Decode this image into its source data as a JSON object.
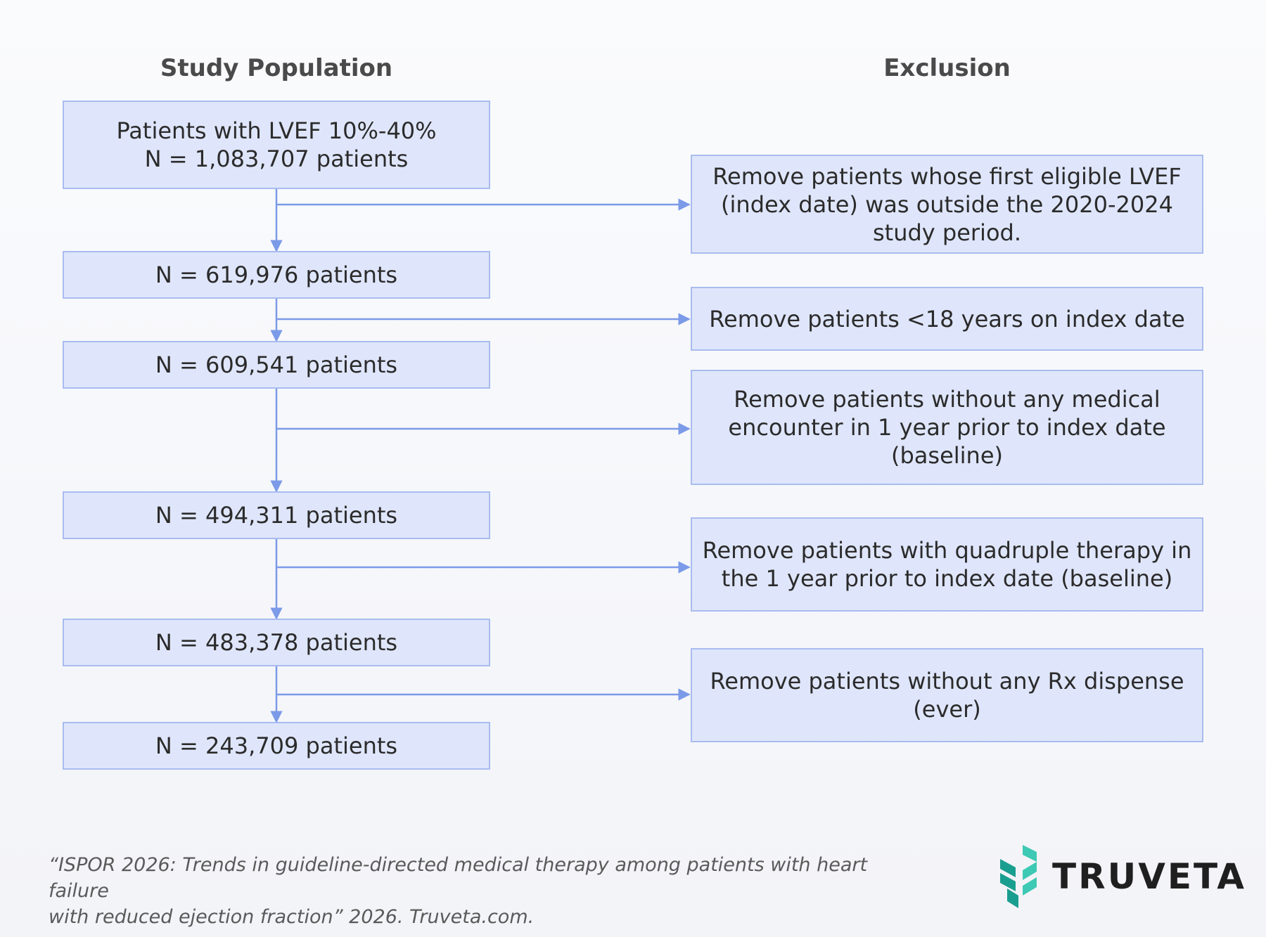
{
  "headings": {
    "population": "Study Population",
    "exclusion": "Exclusion"
  },
  "population_steps": [
    {
      "lines": [
        "Patients with LVEF 10%-40%",
        "N = 1,083,707 patients"
      ]
    },
    {
      "lines": [
        "N = 619,976 patients"
      ]
    },
    {
      "lines": [
        "N = 609,541 patients"
      ]
    },
    {
      "lines": [
        "N = 494,311 patients"
      ]
    },
    {
      "lines": [
        "N = 483,378 patients"
      ]
    },
    {
      "lines": [
        "N = 243,709 patients"
      ]
    }
  ],
  "exclusions": [
    {
      "lines": [
        "Remove patients whose first eligible LVEF",
        "(index date) was outside the 2020-2024",
        "study period."
      ]
    },
    {
      "lines": [
        "Remove patients <18 years on index date"
      ]
    },
    {
      "lines": [
        "Remove patients without any medical",
        "encounter in 1 year prior to index date",
        "(baseline)"
      ]
    },
    {
      "lines": [
        "Remove patients with quadruple therapy in",
        "the 1 year prior to index date (baseline)"
      ]
    },
    {
      "lines": [
        "Remove patients without any Rx dispense",
        "(ever)"
      ]
    }
  ],
  "citation": {
    "line1": "“ISPOR 2026: Trends in guideline-directed medical therapy among patients with heart failure",
    "line2": "with reduced ejection fraction” 2026. Truveta.com."
  },
  "logo": {
    "text": "TRUVETA",
    "icon": "truveta-logo-icon",
    "color_dark": "#1a9e8f",
    "color_light": "#3ec9b4"
  },
  "colors": {
    "box_fill": "#dfe6fb",
    "box_border": "#a9bcf0",
    "connector": "#7b9ae8"
  }
}
